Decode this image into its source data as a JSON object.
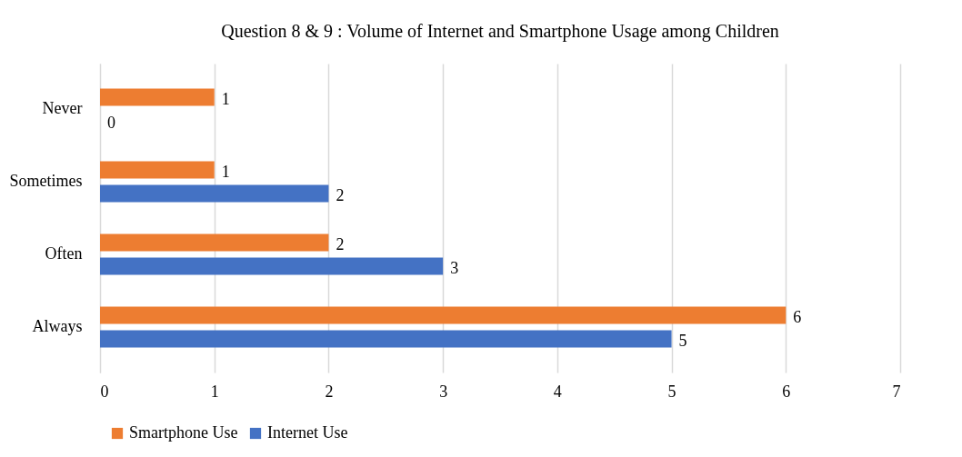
{
  "chart_data": {
    "type": "bar",
    "orientation": "horizontal",
    "title": "Question 8 & 9 : Volume of Internet and Smartphone Usage among Children",
    "categories": [
      "Never",
      "Sometimes",
      "Often",
      "Always"
    ],
    "series": [
      {
        "name": "Smartphone Use",
        "color": "#ed7d31",
        "values": [
          1,
          1,
          2,
          6
        ]
      },
      {
        "name": "Internet Use",
        "color": "#4472c4",
        "values": [
          0,
          2,
          3,
          5
        ]
      }
    ],
    "xlim": [
      0,
      7
    ],
    "xticks": [
      0,
      1,
      2,
      3,
      4,
      5,
      6,
      7
    ],
    "grid": "x",
    "legend": "bottom",
    "data_labels": true
  }
}
